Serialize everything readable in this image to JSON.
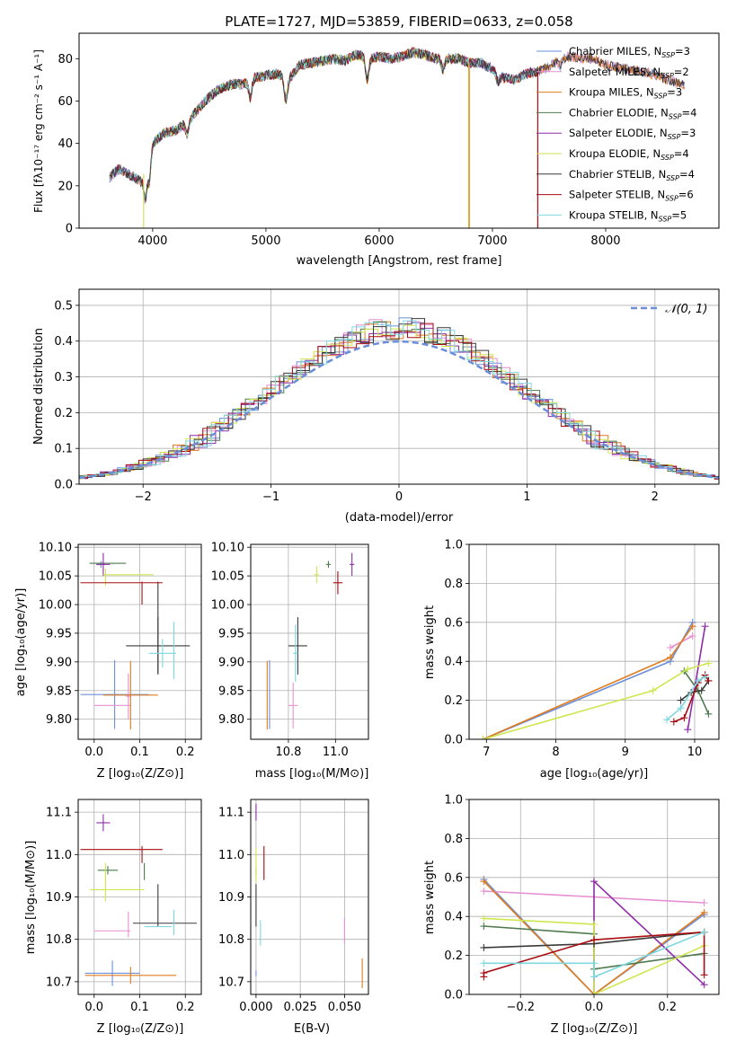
{
  "colors": {
    "grid": "#b0b0b0",
    "series": [
      "#6a8fd8",
      "#e68fd1",
      "#e07b1e",
      "#4e7a4e",
      "#8e2ca7",
      "#cfe650",
      "#3a3a3a",
      "#a80d12",
      "#7fd7e0"
    ],
    "normal_curve": "#6a8fd8"
  },
  "chart_data": [
    {
      "id": "spectrum",
      "type": "line",
      "title": "PLATE=1727, MJD=53859, FIBERID=0633, z=0.058",
      "xlabel": "wavelength [Angstrom, rest frame]",
      "ylabel": "Flux [fλ10⁻¹⁷ erg cm⁻² s⁻¹ A⁻¹]",
      "xlim": [
        3350,
        9000
      ],
      "ylim": [
        0,
        92
      ],
      "xticks": [
        4000,
        5000,
        6000,
        7000,
        8000
      ],
      "yticks": [
        0,
        20,
        40,
        60,
        80
      ],
      "grid": false,
      "legend_position": "top-right",
      "legend": [
        "Chabrier MILES, N_SSP=3",
        "Salpeter MILES, N_SSP=2",
        "Kroupa MILES, N_SSP=3",
        "Chabrier ELODIE, N_SSP=4",
        "Salpeter ELODIE, N_SSP=3",
        "Kroupa ELODIE, N_SSP=4",
        "Chabrier STELIB, N_SSP=4",
        "Salpeter STELIB, N_SSP=6",
        "Kroupa STELIB, N_SSP=5"
      ],
      "series_ranges": [
        [
          3620,
          8700
        ],
        [
          3620,
          8700
        ],
        [
          3620,
          8700
        ],
        [
          3620,
          7400
        ],
        [
          3620,
          7400
        ],
        [
          3900,
          6800
        ],
        [
          3620,
          8700
        ],
        [
          3620,
          7400
        ],
        [
          3620,
          7400
        ]
      ],
      "continuum": {
        "x": [
          3620,
          3700,
          3800,
          3900,
          4000,
          4100,
          4200,
          4300,
          4400,
          4500,
          4600,
          4700,
          4800,
          4900,
          5000,
          5100,
          5200,
          5300,
          5400,
          5500,
          5600,
          5700,
          5800,
          5900,
          6000,
          6100,
          6200,
          6300,
          6400,
          6500,
          6600,
          6700,
          6800,
          6900,
          7000,
          7100,
          7200,
          7300,
          7400,
          7500,
          7600,
          7700,
          7800,
          7900,
          8000,
          8100,
          8200,
          8300,
          8400,
          8500,
          8600,
          8700
        ],
        "y": [
          24,
          28,
          25,
          22,
          40,
          45,
          46,
          50,
          56,
          62,
          66,
          68,
          68,
          71,
          72,
          73,
          70,
          77,
          78,
          79,
          80,
          79,
          82,
          80,
          81,
          80,
          81,
          83,
          82,
          80,
          80,
          80,
          78,
          78,
          75,
          71,
          70,
          73,
          74,
          76,
          80,
          81,
          80,
          80,
          77,
          76,
          75,
          74,
          73,
          71,
          69,
          67
        ]
      },
      "spikes": [
        {
          "series": 5,
          "x": 3920,
          "to": 0
        },
        {
          "series": 5,
          "x": 6790,
          "to": 0
        },
        {
          "series": 2,
          "x": 6795,
          "to": 0
        },
        {
          "series": 7,
          "x": 7400,
          "to": 0
        }
      ]
    },
    {
      "id": "residuals",
      "type": "step",
      "xlabel": "(data-model)/error",
      "ylabel": "Normed distribution",
      "xlim": [
        -2.5,
        2.5
      ],
      "ylim": [
        0,
        0.545
      ],
      "xticks": [
        -2,
        -1,
        0,
        1,
        2
      ],
      "yticks": [
        0.0,
        0.1,
        0.2,
        0.3,
        0.4,
        0.5
      ],
      "grid": true,
      "legend": [
        "𝒩(0, 1)"
      ],
      "legend_position": "top-right",
      "bin_width": 0.1
    },
    {
      "id": "age-vs-Z",
      "type": "errorbar",
      "xlabel": "Z [log₁₀(Z/Z⊙)]",
      "ylabel": "age  [log₁₀(age/yr)]",
      "xlim": [
        -0.035,
        0.235
      ],
      "ylim": [
        9.765,
        10.105
      ],
      "xticks": [
        0.0,
        0.1,
        0.2
      ],
      "yticks": [
        9.8,
        9.85,
        9.9,
        9.95,
        10.0,
        10.05,
        10.1
      ],
      "grid": true,
      "points": [
        {
          "s": 0,
          "x": 0.045,
          "y": 9.843,
          "xe": 0.075,
          "ye": 0.06
        },
        {
          "s": 0,
          "x": 0.015,
          "y": 10.07,
          "xe": 0.01,
          "ye": 0.006
        },
        {
          "s": 1,
          "x": 0.04,
          "y": 9.824,
          "xe": 0.04,
          "ye": 0.0
        },
        {
          "s": 1,
          "x": 0.075,
          "y": 9.84,
          "xe": 0.005,
          "ye": 0.04
        },
        {
          "s": 2,
          "x": 0.08,
          "y": 9.842,
          "xe": 0.06,
          "ye": 0.06
        },
        {
          "s": 3,
          "x": 0.03,
          "y": 10.072,
          "xe": 0.04,
          "ye": 0.0
        },
        {
          "s": 4,
          "x": 0.02,
          "y": 10.07,
          "xe": 0.015,
          "ye": 0.02
        },
        {
          "s": 5,
          "x": 0.075,
          "y": 10.052,
          "xe": 0.055,
          "ye": 0.0
        },
        {
          "s": 5,
          "x": 0.025,
          "y": 10.048,
          "xe": 0.0,
          "ye": 0.015
        },
        {
          "s": 6,
          "x": 0.14,
          "y": 9.928,
          "xe": 0.07,
          "ye": 0.05
        },
        {
          "s": 6,
          "x": 0.14,
          "y": 9.96,
          "xe": 0.0,
          "ye": 0.08
        },
        {
          "s": 7,
          "x": 0.06,
          "y": 10.038,
          "xe": 0.09,
          "ye": 0.0
        },
        {
          "s": 7,
          "x": 0.105,
          "y": 10.02,
          "xe": 0.0,
          "ye": 0.02
        },
        {
          "s": 8,
          "x": 0.15,
          "y": 9.915,
          "xe": 0.03,
          "ye": 0.025
        },
        {
          "s": 8,
          "x": 0.175,
          "y": 9.92,
          "xe": 0.0,
          "ye": 0.05
        }
      ]
    },
    {
      "id": "age-vs-mass",
      "type": "errorbar",
      "xlabel": "mass [log₁₀(M/M⊙)]",
      "ylabel": "",
      "xlim": [
        10.64,
        11.14
      ],
      "ylim": [
        9.765,
        10.105
      ],
      "xticks": [
        10.8,
        11.0
      ],
      "yticks": [
        9.8,
        9.85,
        9.9,
        9.95,
        10.0,
        10.05,
        10.1
      ],
      "grid": true,
      "points": [
        {
          "s": 0,
          "x": 10.72,
          "y": 9.843,
          "xe": 0.0,
          "ye": 0.06
        },
        {
          "s": 1,
          "x": 10.82,
          "y": 9.824,
          "xe": 0.02,
          "ye": 0.04
        },
        {
          "s": 2,
          "x": 10.71,
          "y": 9.842,
          "xe": 0.0,
          "ye": 0.06
        },
        {
          "s": 3,
          "x": 10.97,
          "y": 10.07,
          "xe": 0.01,
          "ye": 0.006
        },
        {
          "s": 4,
          "x": 11.07,
          "y": 10.07,
          "xe": 0.01,
          "ye": 0.02
        },
        {
          "s": 5,
          "x": 10.92,
          "y": 10.052,
          "xe": 0.01,
          "ye": 0.015
        },
        {
          "s": 6,
          "x": 10.84,
          "y": 9.928,
          "xe": 0.04,
          "ye": 0.05
        },
        {
          "s": 7,
          "x": 11.01,
          "y": 10.038,
          "xe": 0.02,
          "ye": 0.02
        },
        {
          "s": 8,
          "x": 10.83,
          "y": 9.915,
          "xe": 0.01,
          "ye": 0.05
        }
      ]
    },
    {
      "id": "weight-vs-age",
      "type": "line",
      "xlabel": "age  [log₁₀(age/yr)]",
      "ylabel": "mass weight",
      "xlim": [
        6.75,
        10.35
      ],
      "ylim": [
        0,
        1.0
      ],
      "xticks": [
        7,
        8,
        9,
        10
      ],
      "yticks": [
        0.0,
        0.2,
        0.4,
        0.6,
        0.8,
        1.0
      ],
      "grid": true,
      "series": [
        {
          "s": 0,
          "x": [
            6.95,
            9.65,
            9.97
          ],
          "y": [
            0.0,
            0.4,
            0.6
          ]
        },
        {
          "s": 1,
          "x": [
            9.65,
            9.97
          ],
          "y": [
            0.47,
            0.53
          ]
        },
        {
          "s": 2,
          "x": [
            6.95,
            9.65,
            9.97
          ],
          "y": [
            0.0,
            0.42,
            0.58
          ]
        },
        {
          "s": 3,
          "x": [
            9.85,
            10.05,
            10.2
          ],
          "y": [
            0.35,
            0.25,
            0.13
          ]
        },
        {
          "s": 4,
          "x": [
            9.9,
            10.15
          ],
          "y": [
            0.05,
            0.58
          ]
        },
        {
          "s": 5,
          "x": [
            6.95,
            9.4,
            9.9,
            10.2
          ],
          "y": [
            0.0,
            0.25,
            0.36,
            0.39
          ]
        },
        {
          "s": 6,
          "x": [
            9.8,
            9.95,
            10.1,
            10.2
          ],
          "y": [
            0.2,
            0.24,
            0.25,
            0.3
          ]
        },
        {
          "s": 7,
          "x": [
            9.7,
            9.85,
            10.05,
            10.15,
            10.2
          ],
          "y": [
            0.09,
            0.11,
            0.29,
            0.33,
            0.3
          ]
        },
        {
          "s": 8,
          "x": [
            9.6,
            9.8,
            10.05,
            10.15
          ],
          "y": [
            0.1,
            0.16,
            0.3,
            0.32
          ]
        }
      ]
    },
    {
      "id": "mass-vs-Z",
      "type": "errorbar",
      "xlabel": "Z [log₁₀(Z/Z⊙)]",
      "ylabel": "mass [log₁₀(M/M⊙)]",
      "xlim": [
        -0.035,
        0.235
      ],
      "ylim": [
        10.67,
        11.13
      ],
      "xticks": [
        0.0,
        0.1,
        0.2
      ],
      "yticks": [
        10.7,
        10.8,
        10.9,
        11.0,
        11.1
      ],
      "grid": true,
      "points": [
        {
          "s": 0,
          "x": 0.04,
          "y": 10.72,
          "xe": 0.06,
          "ye": 0.03
        },
        {
          "s": 1,
          "x": 0.04,
          "y": 10.82,
          "xe": 0.04,
          "ye": 0.0
        },
        {
          "s": 1,
          "x": 0.075,
          "y": 10.835,
          "xe": 0.0,
          "ye": 0.03
        },
        {
          "s": 2,
          "x": 0.08,
          "y": 10.715,
          "xe": 0.1,
          "ye": 0.02
        },
        {
          "s": 3,
          "x": 0.03,
          "y": 10.963,
          "xe": 0.022,
          "ye": 0.01
        },
        {
          "s": 3,
          "x": 0.11,
          "y": 10.96,
          "xe": 0.0,
          "ye": 0.02
        },
        {
          "s": 4,
          "x": 0.02,
          "y": 11.075,
          "xe": 0.015,
          "ye": 0.02
        },
        {
          "s": 5,
          "x": 0.05,
          "y": 10.917,
          "xe": 0.06,
          "ye": 0.0
        },
        {
          "s": 5,
          "x": 0.025,
          "y": 10.935,
          "xe": 0.0,
          "ye": 0.045
        },
        {
          "s": 6,
          "x": 0.155,
          "y": 10.838,
          "xe": 0.07,
          "ye": 0.0
        },
        {
          "s": 6,
          "x": 0.14,
          "y": 10.88,
          "xe": 0.0,
          "ye": 0.05
        },
        {
          "s": 7,
          "x": 0.06,
          "y": 11.012,
          "xe": 0.09,
          "ye": 0.0
        },
        {
          "s": 7,
          "x": 0.105,
          "y": 11.0,
          "xe": 0.0,
          "ye": 0.02
        },
        {
          "s": 8,
          "x": 0.14,
          "y": 10.83,
          "xe": 0.03,
          "ye": 0.0
        },
        {
          "s": 8,
          "x": 0.175,
          "y": 10.84,
          "xe": 0.0,
          "ye": 0.03
        }
      ]
    },
    {
      "id": "mass-vs-EBV",
      "type": "errorbar",
      "xlabel": "E(B-V)",
      "ylabel": "",
      "xlim": [
        -0.003,
        0.0635
      ],
      "ylim": [
        10.67,
        11.13
      ],
      "xticks": [
        0.0,
        0.025,
        0.05
      ],
      "yticks": [
        10.7,
        10.8,
        10.9,
        11.0,
        11.1
      ],
      "grid": true,
      "points": [
        {
          "s": 0,
          "x": 0.0,
          "y": 10.72,
          "xe": 0.0,
          "ye": 0.0
        },
        {
          "s": 1,
          "x": 0.05,
          "y": 10.82,
          "xe": 0.0,
          "ye": 0.03
        },
        {
          "s": 2,
          "x": 0.06,
          "y": 10.72,
          "xe": 0.0,
          "ye": 0.035
        },
        {
          "s": 3,
          "x": 0.0,
          "y": 10.96,
          "xe": 0.0,
          "ye": 0.0
        },
        {
          "s": 4,
          "x": 0.0,
          "y": 11.1,
          "xe": 0.0,
          "ye": 0.02
        },
        {
          "s": 5,
          "x": 0.0,
          "y": 10.975,
          "xe": 0.0,
          "ye": 0.04
        },
        {
          "s": 6,
          "x": 0.0,
          "y": 10.88,
          "xe": 0.0,
          "ye": 0.05
        },
        {
          "s": 7,
          "x": 0.0045,
          "y": 10.98,
          "xe": 0.0,
          "ye": 0.04
        },
        {
          "s": 8,
          "x": 0.0025,
          "y": 10.815,
          "xe": 0.0,
          "ye": 0.03
        }
      ]
    },
    {
      "id": "weight-vs-Z",
      "type": "line",
      "xlabel": "Z [log₁₀(Z/Z⊙)]",
      "ylabel": "mass weight",
      "xlim": [
        -0.34,
        0.34
      ],
      "ylim": [
        0,
        1.0
      ],
      "xticks": [
        -0.2,
        0.0,
        0.2
      ],
      "yticks": [
        0.0,
        0.2,
        0.4,
        0.6,
        0.8,
        1.0
      ],
      "grid": true,
      "series": [
        {
          "s": 0,
          "x": [
            -0.3,
            0.0,
            0.3
          ],
          "y": [
            0.59,
            0.0,
            0.41
          ]
        },
        {
          "s": 1,
          "x": [
            -0.3,
            0.3
          ],
          "y": [
            0.53,
            0.47
          ]
        },
        {
          "s": 2,
          "x": [
            -0.3,
            0.0,
            0.3
          ],
          "y": [
            0.58,
            0.0,
            0.42
          ]
        },
        {
          "s": 3,
          "x": [
            -0.3,
            0.0,
            0.0,
            0.3
          ],
          "y": [
            0.35,
            0.31,
            0.13,
            0.21
          ]
        },
        {
          "s": 4,
          "x": [
            0.0,
            0.0,
            0.3
          ],
          "y": [
            0.0,
            0.58,
            0.05
          ]
        },
        {
          "s": 5,
          "x": [
            -0.3,
            0.0,
            0.0,
            0.3
          ],
          "y": [
            0.39,
            0.36,
            0.0,
            0.25
          ]
        },
        {
          "s": 6,
          "x": [
            -0.3,
            0.0,
            0.3
          ],
          "y": [
            0.24,
            0.26,
            0.32
          ]
        },
        {
          "s": 7,
          "x": [
            -0.3,
            -0.3,
            0.0,
            0.3,
            0.3
          ],
          "y": [
            0.09,
            0.11,
            0.28,
            0.32,
            0.1
          ]
        },
        {
          "s": 8,
          "x": [
            -0.3,
            0.0,
            0.0,
            0.3
          ],
          "y": [
            0.16,
            0.16,
            0.09,
            0.32
          ]
        }
      ]
    }
  ]
}
